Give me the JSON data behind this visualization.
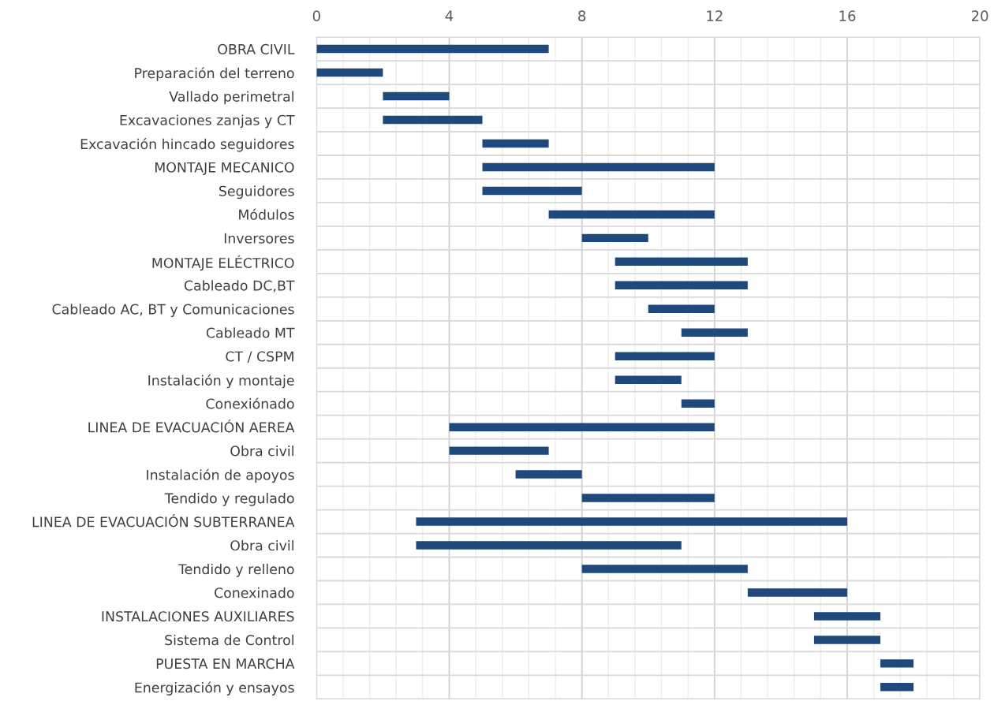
{
  "chart_data": {
    "type": "bar",
    "orientation": "horizontal",
    "color": "#1f497d",
    "grid": true,
    "legend": false,
    "categories": [
      "OBRA CIVIL",
      "Preparación del terreno",
      "Vallado perimetral",
      "Excavaciones zanjas y CT",
      "Excavación hincado seguidores",
      "MONTAJE MECANICO",
      "Seguidores",
      "Módulos",
      "Inversores",
      "MONTAJE ELÉCTRICO",
      "Cableado DC,BT",
      "Cableado AC, BT y Comunicaciones",
      "Cableado MT",
      "CT / CSPM",
      "Instalación y montaje",
      "Conexiónado",
      "LINEA DE EVACUACIÓN AEREA",
      "Obra civil",
      "Instalación de apoyos",
      "Tendido y regulado",
      "LINEA DE EVACUACIÓN SUBTERRANEA",
      "Obra civil",
      "Tendido y relleno",
      "Conexinado",
      "INSTALACIONES AUXILIARES",
      "Sistema de Control",
      "PUESTA EN MARCHA",
      "Energización y ensayos"
    ],
    "base": [
      0,
      0,
      2,
      2,
      5,
      5,
      5,
      7,
      8,
      9,
      9,
      10,
      11,
      9,
      9,
      11,
      4,
      4,
      6,
      8,
      3,
      3,
      8,
      13,
      15,
      15,
      17,
      17
    ],
    "values": [
      7,
      2,
      2,
      3,
      2,
      7,
      3,
      5,
      2,
      4,
      4,
      2,
      2,
      3,
      2,
      1,
      8,
      3,
      2,
      4,
      13,
      8,
      5,
      3,
      2,
      2,
      1,
      1
    ],
    "xlim": [
      0,
      20
    ],
    "xticks": [
      0,
      4,
      8,
      12,
      16,
      20
    ]
  }
}
